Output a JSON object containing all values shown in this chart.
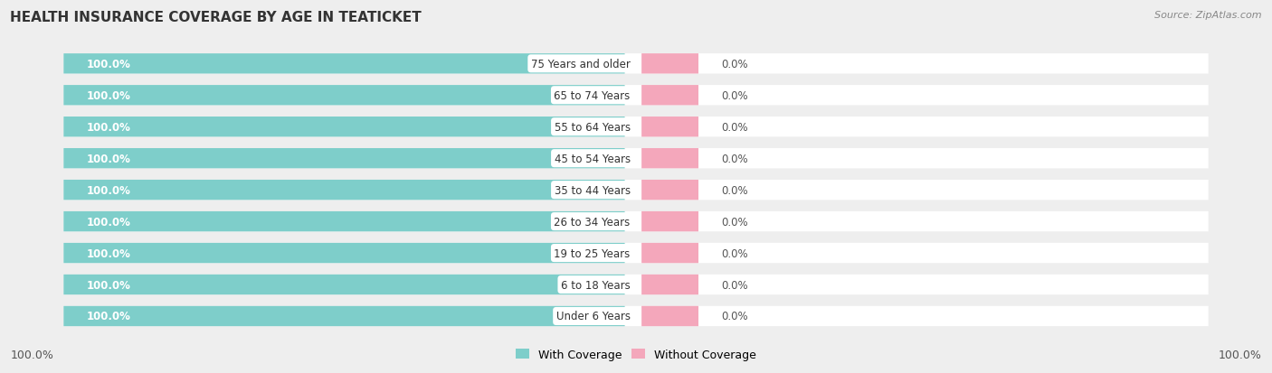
{
  "title": "HEALTH INSURANCE COVERAGE BY AGE IN TEATICKET",
  "source": "Source: ZipAtlas.com",
  "categories": [
    "Under 6 Years",
    "6 to 18 Years",
    "19 to 25 Years",
    "26 to 34 Years",
    "35 to 44 Years",
    "45 to 54 Years",
    "55 to 64 Years",
    "65 to 74 Years",
    "75 Years and older"
  ],
  "with_coverage": [
    100.0,
    100.0,
    100.0,
    100.0,
    100.0,
    100.0,
    100.0,
    100.0,
    100.0
  ],
  "without_coverage": [
    0.0,
    0.0,
    0.0,
    0.0,
    0.0,
    0.0,
    0.0,
    0.0,
    0.0
  ],
  "color_with": "#7ECECA",
  "color_without": "#F4A7BB",
  "bg_color": "#EEEEEE",
  "title_fontsize": 11,
  "source_fontsize": 8,
  "label_fontsize": 8.5,
  "legend_fontsize": 9,
  "bar_height": 0.62,
  "figsize": [
    14.06,
    4.14
  ],
  "dpi": 100
}
